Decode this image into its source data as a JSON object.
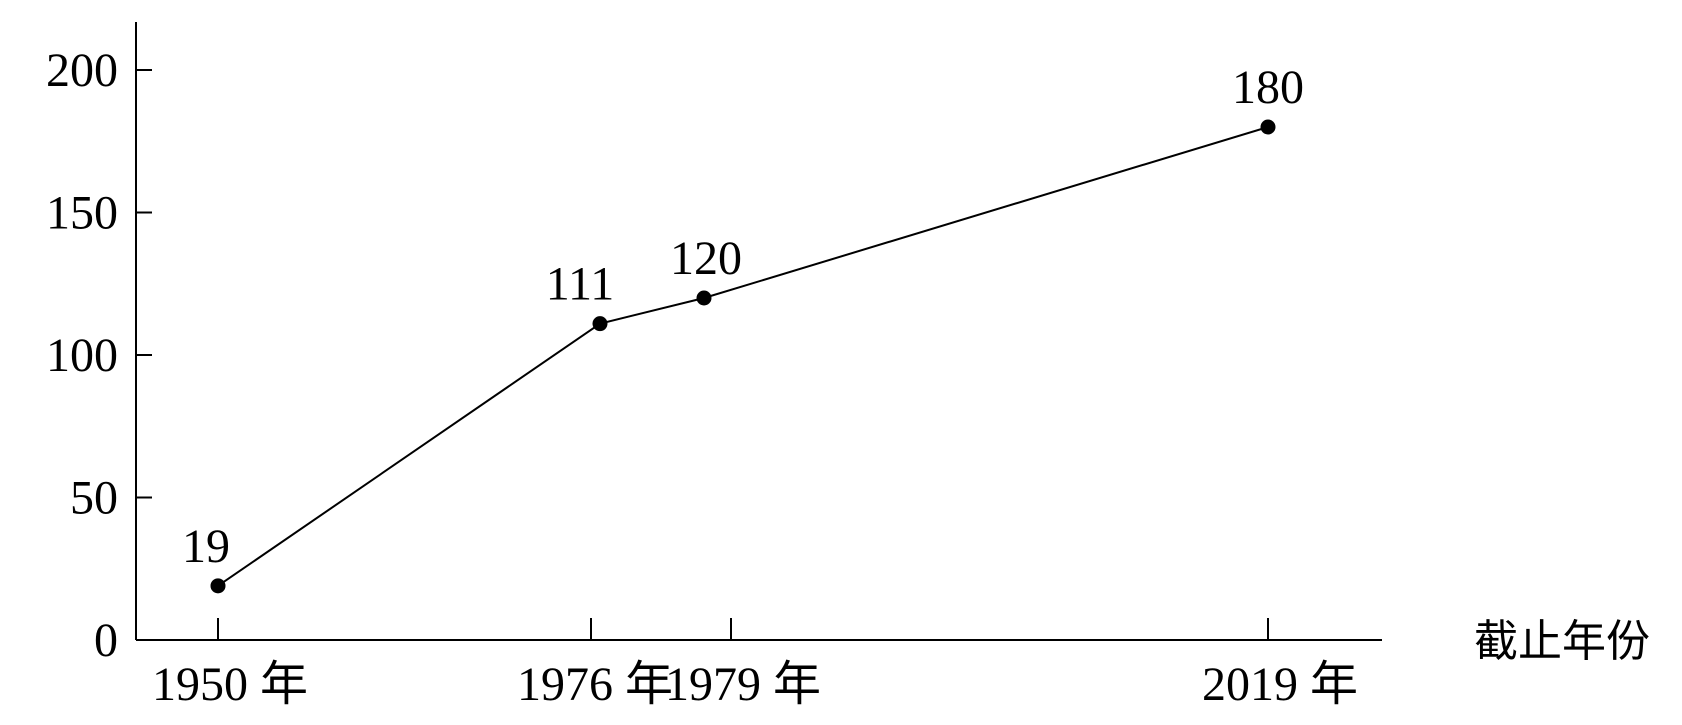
{
  "chart_data": {
    "type": "line",
    "title": "",
    "xlabel": "截止年份",
    "ylabel": "",
    "ylim": [
      0,
      200
    ],
    "yticks": [
      0,
      50,
      100,
      150,
      200
    ],
    "x": [
      1950,
      1976,
      1979,
      2019
    ],
    "x_tick_labels": [
      "1950 年",
      "1976 年",
      "1979 年",
      "2019 年"
    ],
    "series": [
      {
        "values": [
          19,
          111,
          120,
          180
        ],
        "data_labels": [
          "19",
          "111",
          "120",
          "180"
        ]
      }
    ],
    "grid": false,
    "legend": "none",
    "colors": {
      "line": "#000000",
      "marker": "#000000"
    }
  }
}
